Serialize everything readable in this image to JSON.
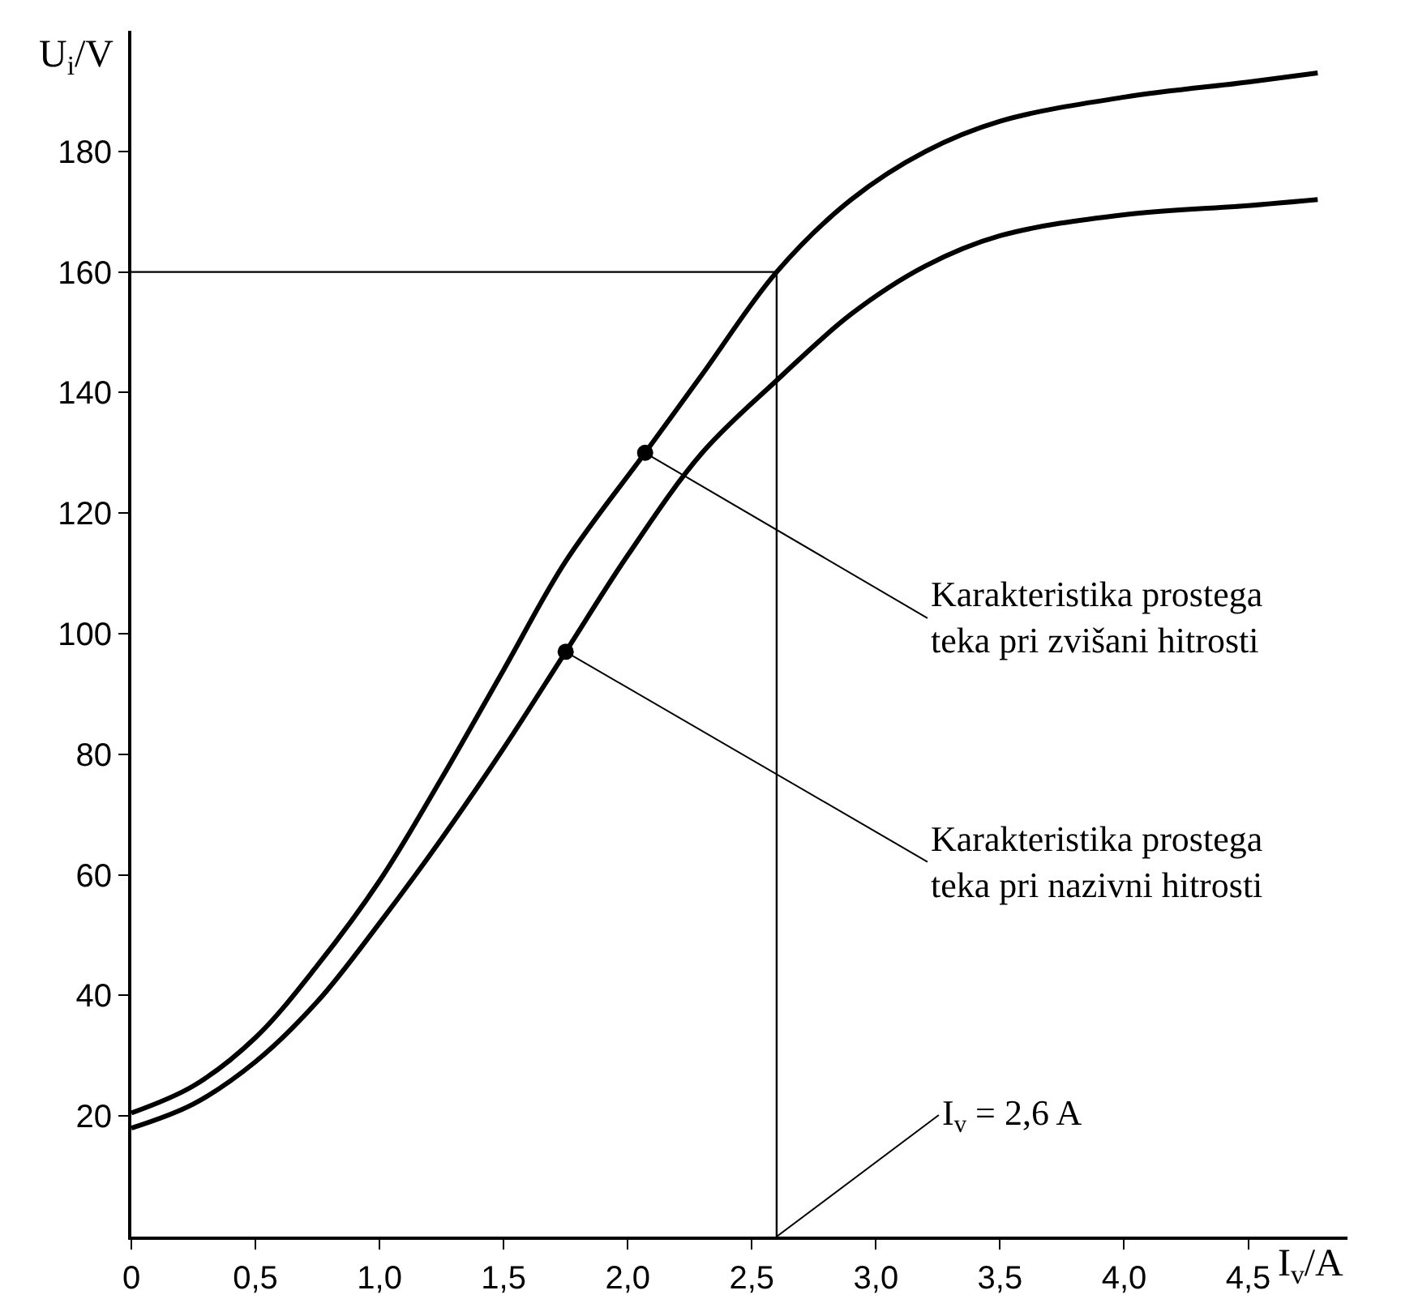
{
  "chart_data": {
    "type": "line",
    "xlabel": "I$_{v}$/A",
    "ylabel": "U$_{i}$/V",
    "x": [
      0,
      0.25,
      0.5,
      0.75,
      1.0,
      1.25,
      1.5,
      1.75,
      2.07,
      2.3,
      2.6,
      2.9,
      3.2,
      3.5,
      4.0,
      4.5,
      4.78
    ],
    "series": [
      {
        "color": "#000000",
        "values": [
          20.5,
          25,
          33,
          45,
          59,
          76,
          94,
          112,
          130,
          143,
          160,
          172,
          180,
          185,
          189,
          191.5,
          193
        ]
      },
      {
        "color": "#000000",
        "x": [
          0,
          0.25,
          0.5,
          0.75,
          1.0,
          1.25,
          1.5,
          1.75,
          2.0,
          2.3,
          2.6,
          2.9,
          3.2,
          3.5,
          4.0,
          4.5,
          4.78
        ],
        "values": [
          18,
          22,
          29,
          39,
          52,
          66,
          81,
          97,
          113,
          130,
          142,
          153,
          161,
          166,
          169.5,
          171,
          172
        ]
      }
    ],
    "xlim": [
      0,
      4.9
    ],
    "ylim": [
      0,
      200
    ],
    "xticks": [
      {
        "value": 0,
        "label": "0"
      },
      {
        "value": 0.5,
        "label": "0,5"
      },
      {
        "value": 1.0,
        "label": "1,0"
      },
      {
        "value": 1.5,
        "label": "1,5"
      },
      {
        "value": 2.0,
        "label": "2,0"
      },
      {
        "value": 2.5,
        "label": "2,5"
      },
      {
        "value": 3.0,
        "label": "3,0"
      },
      {
        "value": 3.5,
        "label": "3,5"
      },
      {
        "value": 4.0,
        "label": "4,0"
      },
      {
        "value": 4.5,
        "label": "4,5"
      }
    ],
    "yticks": [
      20,
      40,
      60,
      80,
      100,
      120,
      140,
      160,
      180
    ],
    "ref_lines": [
      {
        "axis": "x",
        "value": 2.6,
        "label": "I$_{v}$ = 2,6 A",
        "color": "#000000"
      },
      {
        "axis": "y",
        "value": 160,
        "color": "#000000"
      }
    ],
    "annotations": [
      {
        "text": "Karakteristika prostega\nteka pri zvišani hitrosti",
        "x": 2.07,
        "y": 130
      },
      {
        "text": "Karakteristika prostega\nteka pri nazivni hitrosti",
        "x": 1.75,
        "y": 97
      }
    ],
    "marker": "none",
    "line_style": "solid"
  }
}
